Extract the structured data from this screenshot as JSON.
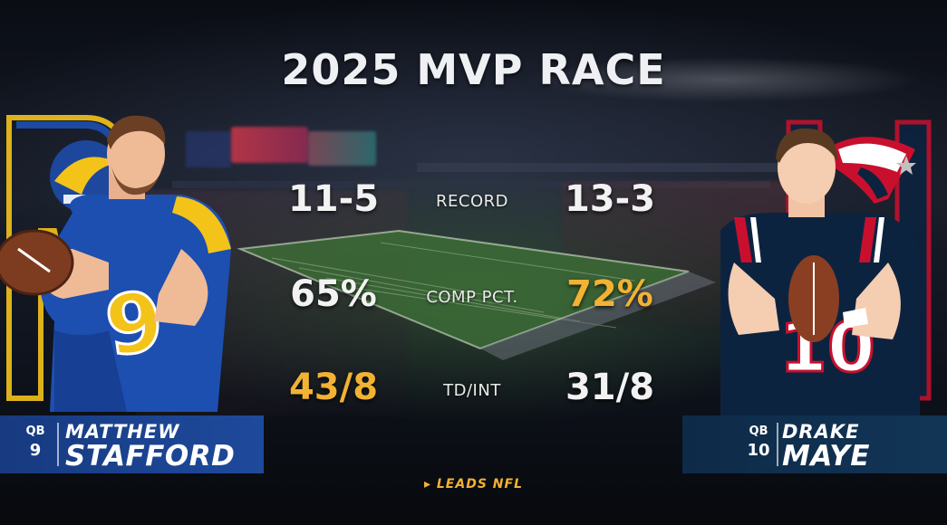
{
  "title": "2025 MVP RACE",
  "colors": {
    "stat_white": "#f2f2f2",
    "stat_gold": "#f2b233",
    "plate_left": "#1b3f86",
    "plate_right": "#0e2a48",
    "rams_blue": "#1d4fb0",
    "rams_gold": "#f4c319",
    "pats_navy": "#0c2340",
    "pats_red": "#c8102e"
  },
  "categories": [
    {
      "label": "RECORD",
      "left": "11-5",
      "right": "13-3",
      "left_leads": false,
      "right_leads": false
    },
    {
      "label": "COMP PCT.",
      "left": "65%",
      "right": "72%",
      "left_leads": false,
      "right_leads": true
    },
    {
      "label": "TD/INT",
      "left": "43/8",
      "right": "31/8",
      "left_leads": true,
      "right_leads": false
    }
  ],
  "players": {
    "left": {
      "position": "QB",
      "number": "9",
      "first_name": "MATTHEW",
      "last_name": "STAFFORD",
      "team_icon": "rams-logo-icon",
      "jersey_number": "9"
    },
    "right": {
      "position": "QB",
      "number": "10",
      "first_name": "DRAKE",
      "last_name": "MAYE",
      "team_icon": "patriots-logo-icon",
      "jersey_number": "10"
    }
  },
  "legend": {
    "marker": "▸",
    "text": "LEADS NFL"
  }
}
